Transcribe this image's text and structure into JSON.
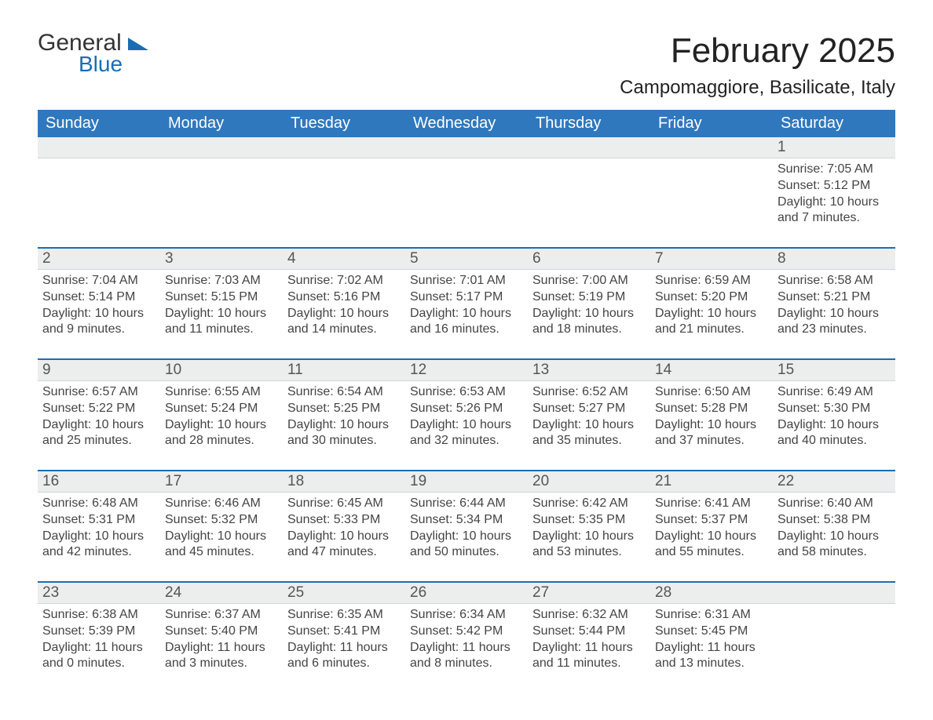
{
  "colors": {
    "header_blue": "#2f78bd",
    "accent_blue": "#1b6db3",
    "day_bg": "#eceeee",
    "text": "#2b2b2b",
    "background": "#ffffff"
  },
  "typography": {
    "month_title_fontsize": 44,
    "location_fontsize": 24,
    "weekday_fontsize": 20,
    "daynum_fontsize": 19,
    "info_fontsize": 16,
    "font_family": "Segoe UI"
  },
  "logo": {
    "line1": "General",
    "line2": "Blue",
    "icon_name": "logo-flag-icon"
  },
  "header": {
    "month_title": "February 2025",
    "location": "Campomaggiore, Basilicate, Italy"
  },
  "weekdays": [
    "Sunday",
    "Monday",
    "Tuesday",
    "Wednesday",
    "Thursday",
    "Friday",
    "Saturday"
  ],
  "layout": {
    "columns": 7,
    "rows": 5,
    "first_day_column_index": 6,
    "days_in_month": 28
  },
  "days": [
    {
      "n": "1",
      "sunrise": "Sunrise: 7:05 AM",
      "sunset": "Sunset: 5:12 PM",
      "dl1": "Daylight: 10 hours",
      "dl2": "and 7 minutes."
    },
    {
      "n": "2",
      "sunrise": "Sunrise: 7:04 AM",
      "sunset": "Sunset: 5:14 PM",
      "dl1": "Daylight: 10 hours",
      "dl2": "and 9 minutes."
    },
    {
      "n": "3",
      "sunrise": "Sunrise: 7:03 AM",
      "sunset": "Sunset: 5:15 PM",
      "dl1": "Daylight: 10 hours",
      "dl2": "and 11 minutes."
    },
    {
      "n": "4",
      "sunrise": "Sunrise: 7:02 AM",
      "sunset": "Sunset: 5:16 PM",
      "dl1": "Daylight: 10 hours",
      "dl2": "and 14 minutes."
    },
    {
      "n": "5",
      "sunrise": "Sunrise: 7:01 AM",
      "sunset": "Sunset: 5:17 PM",
      "dl1": "Daylight: 10 hours",
      "dl2": "and 16 minutes."
    },
    {
      "n": "6",
      "sunrise": "Sunrise: 7:00 AM",
      "sunset": "Sunset: 5:19 PM",
      "dl1": "Daylight: 10 hours",
      "dl2": "and 18 minutes."
    },
    {
      "n": "7",
      "sunrise": "Sunrise: 6:59 AM",
      "sunset": "Sunset: 5:20 PM",
      "dl1": "Daylight: 10 hours",
      "dl2": "and 21 minutes."
    },
    {
      "n": "8",
      "sunrise": "Sunrise: 6:58 AM",
      "sunset": "Sunset: 5:21 PM",
      "dl1": "Daylight: 10 hours",
      "dl2": "and 23 minutes."
    },
    {
      "n": "9",
      "sunrise": "Sunrise: 6:57 AM",
      "sunset": "Sunset: 5:22 PM",
      "dl1": "Daylight: 10 hours",
      "dl2": "and 25 minutes."
    },
    {
      "n": "10",
      "sunrise": "Sunrise: 6:55 AM",
      "sunset": "Sunset: 5:24 PM",
      "dl1": "Daylight: 10 hours",
      "dl2": "and 28 minutes."
    },
    {
      "n": "11",
      "sunrise": "Sunrise: 6:54 AM",
      "sunset": "Sunset: 5:25 PM",
      "dl1": "Daylight: 10 hours",
      "dl2": "and 30 minutes."
    },
    {
      "n": "12",
      "sunrise": "Sunrise: 6:53 AM",
      "sunset": "Sunset: 5:26 PM",
      "dl1": "Daylight: 10 hours",
      "dl2": "and 32 minutes."
    },
    {
      "n": "13",
      "sunrise": "Sunrise: 6:52 AM",
      "sunset": "Sunset: 5:27 PM",
      "dl1": "Daylight: 10 hours",
      "dl2": "and 35 minutes."
    },
    {
      "n": "14",
      "sunrise": "Sunrise: 6:50 AM",
      "sunset": "Sunset: 5:28 PM",
      "dl1": "Daylight: 10 hours",
      "dl2": "and 37 minutes."
    },
    {
      "n": "15",
      "sunrise": "Sunrise: 6:49 AM",
      "sunset": "Sunset: 5:30 PM",
      "dl1": "Daylight: 10 hours",
      "dl2": "and 40 minutes."
    },
    {
      "n": "16",
      "sunrise": "Sunrise: 6:48 AM",
      "sunset": "Sunset: 5:31 PM",
      "dl1": "Daylight: 10 hours",
      "dl2": "and 42 minutes."
    },
    {
      "n": "17",
      "sunrise": "Sunrise: 6:46 AM",
      "sunset": "Sunset: 5:32 PM",
      "dl1": "Daylight: 10 hours",
      "dl2": "and 45 minutes."
    },
    {
      "n": "18",
      "sunrise": "Sunrise: 6:45 AM",
      "sunset": "Sunset: 5:33 PM",
      "dl1": "Daylight: 10 hours",
      "dl2": "and 47 minutes."
    },
    {
      "n": "19",
      "sunrise": "Sunrise: 6:44 AM",
      "sunset": "Sunset: 5:34 PM",
      "dl1": "Daylight: 10 hours",
      "dl2": "and 50 minutes."
    },
    {
      "n": "20",
      "sunrise": "Sunrise: 6:42 AM",
      "sunset": "Sunset: 5:35 PM",
      "dl1": "Daylight: 10 hours",
      "dl2": "and 53 minutes."
    },
    {
      "n": "21",
      "sunrise": "Sunrise: 6:41 AM",
      "sunset": "Sunset: 5:37 PM",
      "dl1": "Daylight: 10 hours",
      "dl2": "and 55 minutes."
    },
    {
      "n": "22",
      "sunrise": "Sunrise: 6:40 AM",
      "sunset": "Sunset: 5:38 PM",
      "dl1": "Daylight: 10 hours",
      "dl2": "and 58 minutes."
    },
    {
      "n": "23",
      "sunrise": "Sunrise: 6:38 AM",
      "sunset": "Sunset: 5:39 PM",
      "dl1": "Daylight: 11 hours",
      "dl2": "and 0 minutes."
    },
    {
      "n": "24",
      "sunrise": "Sunrise: 6:37 AM",
      "sunset": "Sunset: 5:40 PM",
      "dl1": "Daylight: 11 hours",
      "dl2": "and 3 minutes."
    },
    {
      "n": "25",
      "sunrise": "Sunrise: 6:35 AM",
      "sunset": "Sunset: 5:41 PM",
      "dl1": "Daylight: 11 hours",
      "dl2": "and 6 minutes."
    },
    {
      "n": "26",
      "sunrise": "Sunrise: 6:34 AM",
      "sunset": "Sunset: 5:42 PM",
      "dl1": "Daylight: 11 hours",
      "dl2": "and 8 minutes."
    },
    {
      "n": "27",
      "sunrise": "Sunrise: 6:32 AM",
      "sunset": "Sunset: 5:44 PM",
      "dl1": "Daylight: 11 hours",
      "dl2": "and 11 minutes."
    },
    {
      "n": "28",
      "sunrise": "Sunrise: 6:31 AM",
      "sunset": "Sunset: 5:45 PM",
      "dl1": "Daylight: 11 hours",
      "dl2": "and 13 minutes."
    }
  ]
}
